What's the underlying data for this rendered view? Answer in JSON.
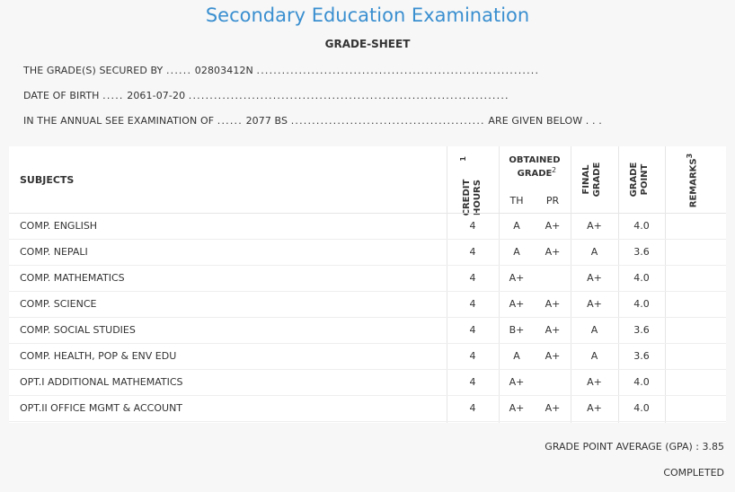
{
  "title": "Secondary Education Examination",
  "subtitle": "GRADE-SHEET",
  "info": {
    "secured_label": "THE GRADE(S) SECURED BY",
    "secured_dots_before": "......",
    "symbol_no": "02803412N",
    "secured_dots_after": "...................................................................",
    "dob_label": "DATE OF BIRTH",
    "dob_dots_before": ".....",
    "dob": "2061-07-20",
    "dob_dots_after": "............................................................................",
    "exam_label": "IN THE ANNUAL SEE EXAMINATION OF",
    "exam_dots_before": "......",
    "exam_year": "2077 BS",
    "exam_dots_after": "..............................................",
    "exam_suffix": "ARE GIVEN BELOW . . ."
  },
  "table": {
    "headers": {
      "subjects": "SUBJECTS",
      "credit_hours": "CREDIT HOURS",
      "credit_hours_sup": "1",
      "obtained_grade": "OBTAINED GRADE",
      "obtained_grade_sup": "2",
      "th": "TH",
      "pr": "PR",
      "final_grade": "FINAL GRADE",
      "grade_point": "GRADE POINT",
      "remarks": "REMARKS",
      "remarks_sup": "3"
    },
    "rows": [
      {
        "subject": "COMP. ENGLISH",
        "credit": "4",
        "th": "A",
        "pr": "A+",
        "final": "A+",
        "gp": "4.0",
        "remarks": ""
      },
      {
        "subject": "COMP. NEPALI",
        "credit": "4",
        "th": "A",
        "pr": "A+",
        "final": "A",
        "gp": "3.6",
        "remarks": ""
      },
      {
        "subject": "COMP. MATHEMATICS",
        "credit": "4",
        "th": "A+",
        "pr": "",
        "final": "A+",
        "gp": "4.0",
        "remarks": ""
      },
      {
        "subject": "COMP. SCIENCE",
        "credit": "4",
        "th": "A+",
        "pr": "A+",
        "final": "A+",
        "gp": "4.0",
        "remarks": ""
      },
      {
        "subject": "COMP. SOCIAL STUDIES",
        "credit": "4",
        "th": "B+",
        "pr": "A+",
        "final": "A",
        "gp": "3.6",
        "remarks": ""
      },
      {
        "subject": "COMP. HEALTH, POP & ENV EDU",
        "credit": "4",
        "th": "A",
        "pr": "A+",
        "final": "A",
        "gp": "3.6",
        "remarks": ""
      },
      {
        "subject": "OPT.I ADDITIONAL MATHEMATICS",
        "credit": "4",
        "th": "A+",
        "pr": "",
        "final": "A+",
        "gp": "4.0",
        "remarks": ""
      },
      {
        "subject": "OPT.II OFFICE MGMT & ACCOUNT",
        "credit": "4",
        "th": "A+",
        "pr": "A+",
        "final": "A+",
        "gp": "4.0",
        "remarks": ""
      }
    ]
  },
  "summary": {
    "gpa_label": "GRADE POINT AVERAGE (GPA) :",
    "gpa": "3.85",
    "status": "COMPLETED"
  }
}
